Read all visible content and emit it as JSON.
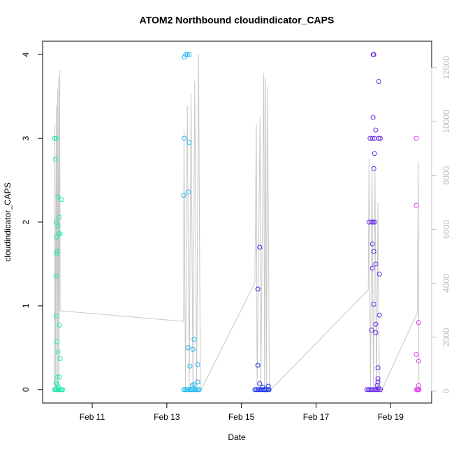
{
  "chart_data": {
    "type": "scatter",
    "title": "ATOM2 Northbound cloudindicator_CAPS",
    "xlabel": "Date",
    "ylabel": "cloudindicator_CAPS",
    "xlim": [
      9.67,
      20.1
    ],
    "xticks": [
      {
        "value": 11,
        "label": "Feb 11"
      },
      {
        "value": 13,
        "label": "Feb 13"
      },
      {
        "value": 15,
        "label": "Feb 15"
      },
      {
        "value": 17,
        "label": "Feb 17"
      },
      {
        "value": 19,
        "label": "Feb 19"
      }
    ],
    "ylim": [
      -0.16,
      4.16
    ],
    "yticks": [
      0,
      1,
      2,
      3,
      4
    ],
    "y2lim": [
      -440,
      12979
    ],
    "y2ticks": [
      0,
      2000,
      4000,
      6000,
      8000,
      10000,
      12000
    ],
    "y2color": "#c0c0c0",
    "series": [
      {
        "color": "#1de9b0",
        "x": [
          9.99,
          10.03,
          10.01,
          10.08,
          10.18,
          10.12,
          10.03,
          10.08,
          10.1,
          10.14,
          10.04,
          10.06,
          10.04,
          10.03,
          10.03,
          10.12,
          10.06,
          10.08,
          10.14,
          10.06,
          10.12,
          10.03,
          10.06,
          10.1,
          9.99,
          10.01,
          10.04,
          10.08,
          10.12,
          10.16,
          10.18,
          10.21
        ],
        "values": [
          3.0,
          3.0,
          2.75,
          2.3,
          2.27,
          2.06,
          2.0,
          1.95,
          1.86,
          1.86,
          1.82,
          1.65,
          1.62,
          1.36,
          0.88,
          0.77,
          0.57,
          0.45,
          0.37,
          0.15,
          0.15,
          0.08,
          0.06,
          0.03,
          0,
          0,
          0,
          0,
          0,
          0,
          0,
          0
        ]
      },
      {
        "color": "#1eb8f0",
        "x": [
          13.47,
          13.51,
          13.55,
          13.6,
          13.47,
          13.6,
          13.58,
          13.45,
          13.73,
          13.57,
          13.7,
          13.83,
          13.62,
          13.83,
          13.73,
          13.68,
          13.45,
          13.49,
          13.53,
          13.57,
          13.62,
          13.66,
          13.7,
          13.75,
          13.79,
          13.83,
          13.87
        ],
        "values": [
          3.97,
          4.0,
          4.0,
          4.0,
          3.0,
          2.95,
          2.36,
          2.32,
          0.6,
          0.5,
          0.48,
          0.3,
          0.28,
          0.09,
          0.06,
          0.05,
          0,
          0,
          0,
          0,
          0,
          0,
          0,
          0,
          0,
          0,
          0
        ]
      },
      {
        "color": "#1c32ea",
        "x": [
          15.49,
          15.44,
          15.44,
          15.49,
          15.72,
          15.57,
          15.36,
          15.4,
          15.44,
          15.49,
          15.53,
          15.57,
          15.61,
          15.64,
          15.68,
          15.72,
          15.74
        ],
        "values": [
          1.7,
          1.2,
          0.29,
          0.07,
          0.04,
          0.03,
          0,
          0,
          0,
          0,
          0,
          0,
          0,
          0,
          0,
          0,
          0
        ]
      },
      {
        "color": "#6a2ae8",
        "x": [
          18.53,
          18.55,
          18.53,
          18.6,
          18.45,
          18.51,
          18.57,
          18.68,
          18.72,
          18.68,
          18.57,
          18.55,
          18.42,
          18.49,
          18.53,
          18.57,
          18.51,
          18.55,
          18.6,
          18.51,
          18.7,
          18.55,
          18.7,
          18.6,
          18.49,
          18.6,
          18.66,
          18.66,
          18.66,
          18.64,
          18.68,
          18.36,
          18.4,
          18.44,
          18.48,
          18.52,
          18.56,
          18.6,
          18.64,
          18.69,
          18.73
        ],
        "values": [
          4.0,
          4.0,
          3.25,
          3.1,
          3.0,
          3.0,
          3.0,
          3.0,
          3.0,
          3.68,
          2.82,
          2.64,
          2.0,
          2.0,
          2.0,
          2.0,
          1.74,
          1.65,
          1.5,
          1.45,
          1.38,
          1.02,
          0.89,
          0.78,
          0.71,
          0.68,
          0.26,
          0.13,
          0.09,
          0.05,
          0.02,
          0,
          0,
          0,
          0,
          0,
          0,
          0,
          0,
          0,
          0
        ]
      },
      {
        "color": "#e03ef0",
        "x": [
          19.69,
          19.69,
          19.75,
          19.69,
          19.75,
          19.75,
          19.69,
          19.72,
          19.74,
          19.76
        ],
        "values": [
          3.0,
          2.2,
          0.8,
          0.42,
          0.34,
          0.05,
          0,
          0,
          0,
          0
        ]
      },
      {
        "color": "#c8c8c8",
        "axis": "y2",
        "x": [
          9.99,
          10.0,
          10.01,
          10.04,
          10.05,
          10.07,
          10.08,
          10.1,
          10.11,
          10.13,
          10.14,
          13.45,
          13.46,
          13.5,
          13.55,
          13.6,
          13.65,
          13.7,
          13.75,
          13.8,
          13.85,
          13.9,
          15.36,
          15.4,
          15.42,
          15.5,
          15.52,
          15.6,
          15.62,
          15.65,
          15.67,
          15.7,
          15.75,
          18.4,
          18.42,
          18.46,
          18.5,
          18.54,
          18.58,
          18.62,
          18.66,
          18.7,
          18.75,
          19.72,
          19.74,
          19.76
        ],
        "values": [
          0,
          9900,
          0,
          10600,
          0,
          11200,
          0,
          11600,
          0,
          11900,
          2980,
          2590,
          9700,
          0,
          10600,
          0,
          11000,
          0,
          11500,
          0,
          12500,
          0,
          4015,
          9900,
          0,
          10200,
          0,
          11800,
          0,
          11600,
          0,
          11300,
          0,
          3756,
          8600,
          0,
          8400,
          0,
          8200,
          0,
          7000,
          0,
          0,
          2927,
          8500,
          0
        ]
      }
    ]
  }
}
